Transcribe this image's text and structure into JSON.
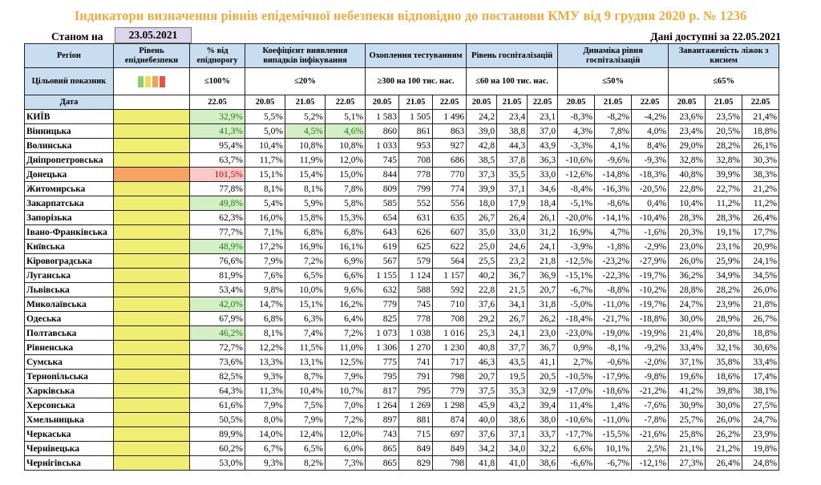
{
  "title": "Індикатори визначення рівнів епідемічної небезпеки відповідно до постанови КМУ від 9 грудня 2020 р. № 1236",
  "as_of_label": "Станом на",
  "as_of_date": "23.05.2021",
  "available_label": "Дані доступні за 22.05.2021",
  "headers": {
    "region": "Регіон",
    "level": "Рівень епіднебезпеки",
    "pct": "% від епідпорогу",
    "coef": "Коефіцієнт виявлення випадків інфікування",
    "testing": "Охоплення тестуванням",
    "hosp": "Рівень госпіталізацій",
    "dyn": "Динаміка рівня госпіталізацій",
    "oxy": "Завантаженість ліжок з киснем"
  },
  "target_row": {
    "label": "Цільовий показник",
    "pct": "≤100%",
    "coef": "≤20%",
    "testing": "≥300 на 100 тис. нас.",
    "hosp": "≤60 на 100 тис. нас.",
    "dyn": "≤50%",
    "oxy": "≤65%"
  },
  "date_row": {
    "label": "Дата",
    "pct": "22.05",
    "d1": "20.05",
    "d2": "21.05",
    "d3": "22.05"
  },
  "colors": {
    "header_bg": "#c8ddf0",
    "level_yellow": "#f0ed73",
    "level_orange": "#f4a460",
    "good_green": "#d4efc6",
    "bad_red": "#f9c9c9",
    "title": "#f2a93b",
    "lights": [
      "#8fcf6a",
      "#e8e05a",
      "#f3a04a",
      "#e8524a"
    ]
  },
  "rows": [
    {
      "region": "КИЇВ",
      "level": "yellow",
      "pct": "32,9%",
      "pct_style": "green",
      "coef": [
        "5,5%",
        "5,2%",
        "5,1%"
      ],
      "coef_style": [
        "",
        "",
        ""
      ],
      "test": [
        "1 583",
        "1 505",
        "1 496"
      ],
      "hosp": [
        "24,2",
        "23,4",
        "23,1"
      ],
      "dyn": [
        "-8,3%",
        "-8,2%",
        "-4,2%"
      ],
      "oxy": [
        "23,6%",
        "23,5%",
        "21,4%"
      ]
    },
    {
      "region": "Вінницька",
      "level": "yellow",
      "pct": "41,3%",
      "pct_style": "green",
      "coef": [
        "5,0%",
        "4,5%",
        "4,6%"
      ],
      "coef_style": [
        "",
        "green",
        "green"
      ],
      "test": [
        "860",
        "861",
        "863"
      ],
      "hosp": [
        "39,0",
        "38,8",
        "37,0"
      ],
      "dyn": [
        "4,3%",
        "7,8%",
        "4,0%"
      ],
      "oxy": [
        "23,4%",
        "20,5%",
        "18,8%"
      ]
    },
    {
      "region": "Волинська",
      "level": "yellow",
      "pct": "95,4%",
      "pct_style": "",
      "coef": [
        "10,4%",
        "10,8%",
        "10,8%"
      ],
      "coef_style": [
        "",
        "",
        ""
      ],
      "test": [
        "1 033",
        "953",
        "927"
      ],
      "hosp": [
        "42,8",
        "44,3",
        "43,9"
      ],
      "dyn": [
        "-3,3%",
        "4,1%",
        "8,4%"
      ],
      "oxy": [
        "29,0%",
        "28,2%",
        "26,1%"
      ]
    },
    {
      "region": "Дніпропетровська",
      "level": "yellow",
      "pct": "63,7%",
      "pct_style": "",
      "coef": [
        "11,7%",
        "11,9%",
        "12,0%"
      ],
      "coef_style": [
        "",
        "",
        ""
      ],
      "test": [
        "745",
        "708",
        "686"
      ],
      "hosp": [
        "38,5",
        "37,8",
        "36,3"
      ],
      "dyn": [
        "-10,6%",
        "-9,6%",
        "-9,3%"
      ],
      "oxy": [
        "32,8%",
        "32,8%",
        "30,3%"
      ]
    },
    {
      "region": "Донецька",
      "level": "orange",
      "pct": "101,5%",
      "pct_style": "red",
      "coef": [
        "15,1%",
        "15,4%",
        "15,0%"
      ],
      "coef_style": [
        "",
        "",
        ""
      ],
      "test": [
        "844",
        "778",
        "770"
      ],
      "hosp": [
        "37,3",
        "35,5",
        "33,0"
      ],
      "dyn": [
        "-12,6%",
        "-14,8%",
        "-18,3%"
      ],
      "oxy": [
        "40,8%",
        "39,9%",
        "38,3%"
      ]
    },
    {
      "region": "Житомирська",
      "level": "yellow",
      "pct": "77,8%",
      "pct_style": "",
      "coef": [
        "8,1%",
        "8,1%",
        "7,8%"
      ],
      "coef_style": [
        "",
        "",
        ""
      ],
      "test": [
        "809",
        "799",
        "774"
      ],
      "hosp": [
        "39,9",
        "37,1",
        "34,6"
      ],
      "dyn": [
        "-8,4%",
        "-16,3%",
        "-20,5%"
      ],
      "oxy": [
        "22,8%",
        "22,7%",
        "21,2%"
      ]
    },
    {
      "region": "Закарпатська",
      "level": "yellow",
      "pct": "49,8%",
      "pct_style": "green",
      "coef": [
        "5,4%",
        "5,9%",
        "5,8%"
      ],
      "coef_style": [
        "",
        "",
        ""
      ],
      "test": [
        "585",
        "552",
        "556"
      ],
      "hosp": [
        "18,0",
        "17,9",
        "18,4"
      ],
      "dyn": [
        "-5,1%",
        "-8,6%",
        "0,4%"
      ],
      "oxy": [
        "10,4%",
        "11,2%",
        "11,2%"
      ]
    },
    {
      "region": "Запорізька",
      "level": "yellow",
      "pct": "62,3%",
      "pct_style": "",
      "coef": [
        "16,0%",
        "15,8%",
        "15,3%"
      ],
      "coef_style": [
        "",
        "",
        ""
      ],
      "test": [
        "654",
        "631",
        "635"
      ],
      "hosp": [
        "26,7",
        "26,4",
        "26,1"
      ],
      "dyn": [
        "-20,0%",
        "-14,1%",
        "-10,4%"
      ],
      "oxy": [
        "28,3%",
        "28,3%",
        "26,4%"
      ]
    },
    {
      "region": "Івано-Франківська",
      "level": "yellow",
      "pct": "77,7%",
      "pct_style": "",
      "coef": [
        "7,1%",
        "6,8%",
        "6,8%"
      ],
      "coef_style": [
        "",
        "",
        ""
      ],
      "test": [
        "643",
        "626",
        "607"
      ],
      "hosp": [
        "35,0",
        "33,0",
        "31,2"
      ],
      "dyn": [
        "16,9%",
        "4,7%",
        "-1,6%"
      ],
      "oxy": [
        "20,3%",
        "19,1%",
        "17,7%"
      ]
    },
    {
      "region": "Київська",
      "level": "yellow",
      "pct": "48,9%",
      "pct_style": "green",
      "coef": [
        "17,2%",
        "16,9%",
        "16,1%"
      ],
      "coef_style": [
        "",
        "",
        ""
      ],
      "test": [
        "619",
        "625",
        "622"
      ],
      "hosp": [
        "25,0",
        "24,6",
        "24,1"
      ],
      "dyn": [
        "-3,9%",
        "-1,8%",
        "-2,9%"
      ],
      "oxy": [
        "23,0%",
        "23,1%",
        "20,9%"
      ]
    },
    {
      "region": "Кіровоградська",
      "level": "yellow",
      "pct": "76,6%",
      "pct_style": "",
      "coef": [
        "7,9%",
        "7,2%",
        "6,9%"
      ],
      "coef_style": [
        "",
        "",
        ""
      ],
      "test": [
        "567",
        "579",
        "564"
      ],
      "hosp": [
        "25,5",
        "23,2",
        "21,8"
      ],
      "dyn": [
        "-12,5%",
        "-23,2%",
        "-27,9%"
      ],
      "oxy": [
        "26,0%",
        "25,9%",
        "24,1%"
      ]
    },
    {
      "region": "Луганська",
      "level": "yellow",
      "pct": "81,9%",
      "pct_style": "",
      "coef": [
        "7,6%",
        "6,5%",
        "6,6%"
      ],
      "coef_style": [
        "",
        "",
        ""
      ],
      "test": [
        "1 155",
        "1 124",
        "1 157"
      ],
      "hosp": [
        "40,2",
        "36,7",
        "36,9"
      ],
      "dyn": [
        "-15,1%",
        "-22,3%",
        "-19,7%"
      ],
      "oxy": [
        "36,2%",
        "34,9%",
        "34,5%"
      ]
    },
    {
      "region": "Львівська",
      "level": "yellow",
      "pct": "53,4%",
      "pct_style": "",
      "coef": [
        "9,8%",
        "10,0%",
        "9,6%"
      ],
      "coef_style": [
        "",
        "",
        ""
      ],
      "test": [
        "632",
        "588",
        "592"
      ],
      "hosp": [
        "22,8",
        "21,5",
        "20,7"
      ],
      "dyn": [
        "-6,7%",
        "-8,8%",
        "-10,2%"
      ],
      "oxy": [
        "28,8%",
        "28,2%",
        "26,0%"
      ]
    },
    {
      "region": "Миколаївська",
      "level": "yellow",
      "pct": "42,0%",
      "pct_style": "green",
      "coef": [
        "14,7%",
        "15,1%",
        "16,2%"
      ],
      "coef_style": [
        "",
        "",
        ""
      ],
      "test": [
        "779",
        "745",
        "710"
      ],
      "hosp": [
        "37,6",
        "34,1",
        "31,8"
      ],
      "dyn": [
        "-5,0%",
        "-11,0%",
        "-19,7%"
      ],
      "oxy": [
        "24,7%",
        "23,9%",
        "21,8%"
      ]
    },
    {
      "region": "Одеська",
      "level": "yellow",
      "pct": "67,9%",
      "pct_style": "",
      "coef": [
        "6,8%",
        "6,3%",
        "6,4%"
      ],
      "coef_style": [
        "",
        "",
        ""
      ],
      "test": [
        "825",
        "778",
        "708"
      ],
      "hosp": [
        "29,2",
        "26,7",
        "26,2"
      ],
      "dyn": [
        "-18,4%",
        "-21,7%",
        "-18,8%"
      ],
      "oxy": [
        "30,0%",
        "28,9%",
        "26,7%"
      ]
    },
    {
      "region": "Полтавська",
      "level": "yellow",
      "pct": "46,2%",
      "pct_style": "green",
      "coef": [
        "8,1%",
        "7,4%",
        "7,2%"
      ],
      "coef_style": [
        "",
        "",
        ""
      ],
      "test": [
        "1 073",
        "1 038",
        "1 016"
      ],
      "hosp": [
        "25,3",
        "24,1",
        "23,0"
      ],
      "dyn": [
        "-23,0%",
        "-19,0%",
        "-19,9%"
      ],
      "oxy": [
        "21,4%",
        "20,8%",
        "18,8%"
      ]
    },
    {
      "region": "Рівненська",
      "level": "yellow",
      "pct": "72,7%",
      "pct_style": "",
      "coef": [
        "12,2%",
        "11,5%",
        "11,0%"
      ],
      "coef_style": [
        "",
        "",
        ""
      ],
      "test": [
        "1 306",
        "1 270",
        "1 230"
      ],
      "hosp": [
        "40,8",
        "37,7",
        "36,7"
      ],
      "dyn": [
        "0,9%",
        "-8,1%",
        "-9,2%"
      ],
      "oxy": [
        "33,4%",
        "32,1%",
        "30,6%"
      ]
    },
    {
      "region": "Сумська",
      "level": "yellow",
      "pct": "73,6%",
      "pct_style": "",
      "coef": [
        "13,3%",
        "13,1%",
        "12,5%"
      ],
      "coef_style": [
        "",
        "",
        ""
      ],
      "test": [
        "775",
        "741",
        "717"
      ],
      "hosp": [
        "46,3",
        "43,5",
        "41,1"
      ],
      "dyn": [
        "2,7%",
        "-0,6%",
        "-2,0%"
      ],
      "oxy": [
        "37,1%",
        "35,8%",
        "33,4%"
      ]
    },
    {
      "region": "Тернопільська",
      "level": "yellow",
      "pct": "82,5%",
      "pct_style": "",
      "coef": [
        "9,3%",
        "8,7%",
        "7,9%"
      ],
      "coef_style": [
        "",
        "",
        ""
      ],
      "test": [
        "795",
        "791",
        "798"
      ],
      "hosp": [
        "20,7",
        "19,5",
        "20,5"
      ],
      "dyn": [
        "-10,5%",
        "-17,9%",
        "-9,8%"
      ],
      "oxy": [
        "19,6%",
        "18,6%",
        "17,4%"
      ]
    },
    {
      "region": "Харківська",
      "level": "yellow",
      "pct": "64,3%",
      "pct_style": "",
      "coef": [
        "11,3%",
        "10,4%",
        "10,7%"
      ],
      "coef_style": [
        "",
        "",
        ""
      ],
      "test": [
        "817",
        "795",
        "779"
      ],
      "hosp": [
        "37,5",
        "35,3",
        "32,9"
      ],
      "dyn": [
        "-17,0%",
        "-18,6%",
        "-21,2%"
      ],
      "oxy": [
        "41,2%",
        "39,8%",
        "38,1%"
      ]
    },
    {
      "region": "Херсонська",
      "level": "yellow",
      "pct": "61,6%",
      "pct_style": "",
      "coef": [
        "7,9%",
        "7,5%",
        "7,0%"
      ],
      "coef_style": [
        "",
        "",
        ""
      ],
      "test": [
        "1 264",
        "1 269",
        "1 298"
      ],
      "hosp": [
        "45,9",
        "43,2",
        "39,4"
      ],
      "dyn": [
        "11,4%",
        "1,4%",
        "-7,6%"
      ],
      "oxy": [
        "30,9%",
        "30,0%",
        "27,5%"
      ]
    },
    {
      "region": "Хмельницька",
      "level": "yellow",
      "pct": "50,5%",
      "pct_style": "",
      "coef": [
        "8,0%",
        "7,9%",
        "7,2%"
      ],
      "coef_style": [
        "",
        "",
        ""
      ],
      "test": [
        "897",
        "881",
        "874"
      ],
      "hosp": [
        "40,0",
        "38,6",
        "38,0"
      ],
      "dyn": [
        "-10,6%",
        "-11,0%",
        "-7,8%"
      ],
      "oxy": [
        "25,7%",
        "26,0%",
        "24,7%"
      ]
    },
    {
      "region": "Черкаська",
      "level": "yellow",
      "pct": "89,9%",
      "pct_style": "",
      "coef": [
        "14,0%",
        "12,4%",
        "12,0%"
      ],
      "coef_style": [
        "",
        "",
        ""
      ],
      "test": [
        "743",
        "715",
        "697"
      ],
      "hosp": [
        "37,6",
        "37,1",
        "33,7"
      ],
      "dyn": [
        "-17,7%",
        "-15,5%",
        "-21,6%"
      ],
      "oxy": [
        "25,8%",
        "26,2%",
        "23,9%"
      ]
    },
    {
      "region": "Чернівецька",
      "level": "yellow",
      "pct": "60,2%",
      "pct_style": "",
      "coef": [
        "6,7%",
        "6,5%",
        "6,0%"
      ],
      "coef_style": [
        "",
        "",
        ""
      ],
      "test": [
        "865",
        "849",
        "849"
      ],
      "hosp": [
        "34,2",
        "34,0",
        "32,2"
      ],
      "dyn": [
        "6,6%",
        "10,1%",
        "2,5%"
      ],
      "oxy": [
        "21,1%",
        "21,2%",
        "19,8%"
      ]
    },
    {
      "region": "Чернігівська",
      "level": "yellow",
      "pct": "53,0%",
      "pct_style": "",
      "coef": [
        "9,3%",
        "8,2%",
        "7,3%"
      ],
      "coef_style": [
        "",
        "",
        ""
      ],
      "test": [
        "865",
        "829",
        "798"
      ],
      "hosp": [
        "41,8",
        "41,0",
        "38,6"
      ],
      "dyn": [
        "-6,6%",
        "-6,7%",
        "-12,1%"
      ],
      "oxy": [
        "27,3%",
        "26,4%",
        "24,8%"
      ]
    }
  ]
}
